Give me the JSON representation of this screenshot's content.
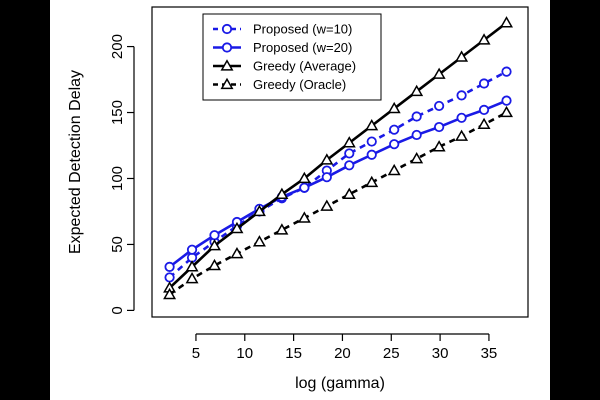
{
  "chart_data": {
    "type": "line",
    "xlabel": "log (gamma)",
    "ylabel": "Expected Detection Delay",
    "xlim": [
      0.5,
      39
    ],
    "ylim": [
      -5,
      230
    ],
    "xticks": [
      5,
      10,
      15,
      20,
      25,
      30,
      35
    ],
    "yticks": [
      0,
      50,
      100,
      150,
      200
    ],
    "grid": false,
    "legend_position": "top-left",
    "x": [
      2.3,
      4.6,
      6.9,
      9.2,
      11.5,
      13.8,
      16.1,
      18.4,
      20.7,
      23.0,
      25.3,
      27.6,
      29.9,
      32.2,
      34.5,
      36.8
    ],
    "series": [
      {
        "name": "Proposed (w=10)",
        "color": "#1a1ae6",
        "line": "dashed",
        "marker": "circle",
        "values": [
          25,
          40,
          52,
          64,
          75,
          85,
          93,
          106,
          119,
          128,
          137,
          147,
          155,
          163,
          172,
          181
        ]
      },
      {
        "name": "Proposed (w=20)",
        "color": "#1a1ae6",
        "line": "solid",
        "marker": "circle",
        "values": [
          33,
          46,
          57,
          67,
          77,
          86,
          93,
          101,
          110,
          118,
          126,
          133,
          139,
          146,
          152,
          159
        ]
      },
      {
        "name": "Greedy (Average)",
        "color": "#000000",
        "line": "solid",
        "marker": "triangle-filled",
        "values": [
          17,
          33,
          49,
          62,
          75,
          88,
          100,
          114,
          127,
          140,
          153,
          166,
          179,
          192,
          205,
          218
        ]
      },
      {
        "name": "Greedy (Oracle)",
        "color": "#000000",
        "line": "dashed",
        "marker": "triangle-open",
        "values": [
          12,
          24,
          34,
          43,
          52,
          61,
          70,
          79,
          88,
          97,
          106,
          115,
          124,
          132,
          141,
          150
        ]
      }
    ]
  }
}
